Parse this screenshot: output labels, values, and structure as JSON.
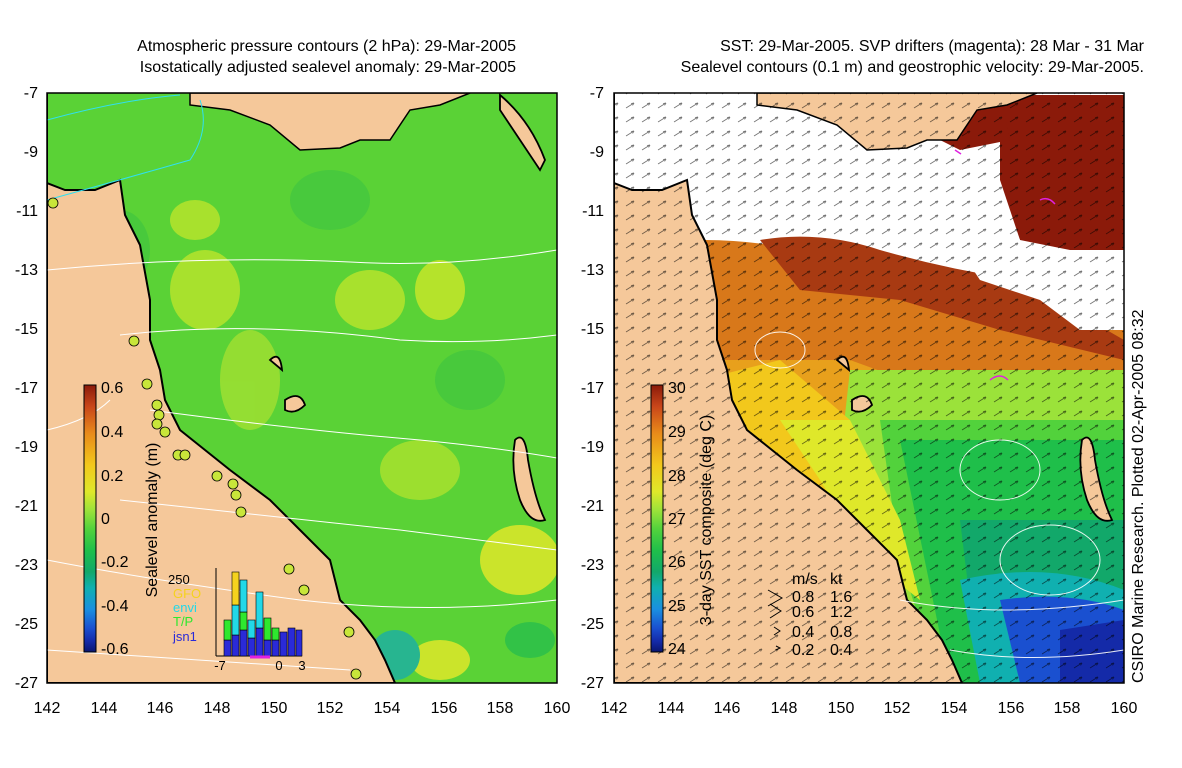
{
  "left_panel": {
    "title_line1": "Atmospheric pressure contours (2 hPa): 29-Mar-2005",
    "title_line2": "Isostatically adjusted sealevel anomaly: 29-Mar-2005",
    "colorbar": {
      "label": "Sealevel anomaly (m)",
      "ticks": [
        "0.6",
        "0.4",
        "0.2",
        "0",
        "-0.2",
        "-0.4",
        "-0.6"
      ],
      "colors": [
        "#8b1a0a",
        "#c8461a",
        "#e88a1a",
        "#f2c81c",
        "#dfe82a",
        "#9be23a",
        "#52d23c",
        "#1fbf4a",
        "#12a86a",
        "#10b0b0",
        "#1a8fe0",
        "#1a50d0",
        "#142aa8",
        "#0a1670"
      ]
    },
    "histogram": {
      "max_label": "250",
      "legend": [
        {
          "label": "GFO",
          "color": "#f5d21e"
        },
        {
          "label": "envi",
          "color": "#22d8e8"
        },
        {
          "label": "T/P",
          "color": "#2ee82e"
        },
        {
          "label": "jsn1",
          "color": "#2a2ad8"
        }
      ],
      "x_ticks": [
        "-7",
        "0",
        "3"
      ]
    }
  },
  "right_panel": {
    "title_line1": "SST: 29-Mar-2005. SVP drifters (magenta): 28 Mar - 31 Mar",
    "title_line2": "Sealevel contours (0.1 m) and geostrophic velocity: 29-Mar-2005.",
    "colorbar": {
      "label": "3-day SST composite (deg C)",
      "ticks": [
        "30",
        "29",
        "28",
        "27",
        "26",
        "25",
        "24"
      ],
      "colors": [
        "#8b1a0a",
        "#c8461a",
        "#e88a1a",
        "#f2c81c",
        "#dfe82a",
        "#9be23a",
        "#52d23c",
        "#1fbf4a",
        "#12a86a",
        "#10b0b0",
        "#1a8fe0",
        "#1a50d0",
        "#142aa8",
        "#0a1670"
      ]
    },
    "velocity_legend": {
      "header_ms": "m/s",
      "header_kt": "kt",
      "rows": [
        {
          "ms": "0.8",
          "kt": "1.6"
        },
        {
          "ms": "0.6",
          "kt": "1.2"
        },
        {
          "ms": "0.4",
          "kt": "0.8"
        },
        {
          "ms": "0.2",
          "kt": "0.4"
        }
      ]
    },
    "credit": "CSIRO Marine Research. Plotted 02-Apr-2005 08:32"
  },
  "axes": {
    "lat_ticks": [
      "-7",
      "-9",
      "-11",
      "-13",
      "-15",
      "-17",
      "-19",
      "-21",
      "-23",
      "-25",
      "-27"
    ],
    "lon_ticks": [
      "142",
      "144",
      "146",
      "148",
      "150",
      "152",
      "154",
      "156",
      "158",
      "160"
    ]
  },
  "colors": {
    "land": "#f5c89a",
    "sea_green": "#5ad236",
    "cloud": "#ffffff",
    "coast": "#000000",
    "pressure_contour": "#ffffff",
    "drifter": "#e020e0"
  }
}
